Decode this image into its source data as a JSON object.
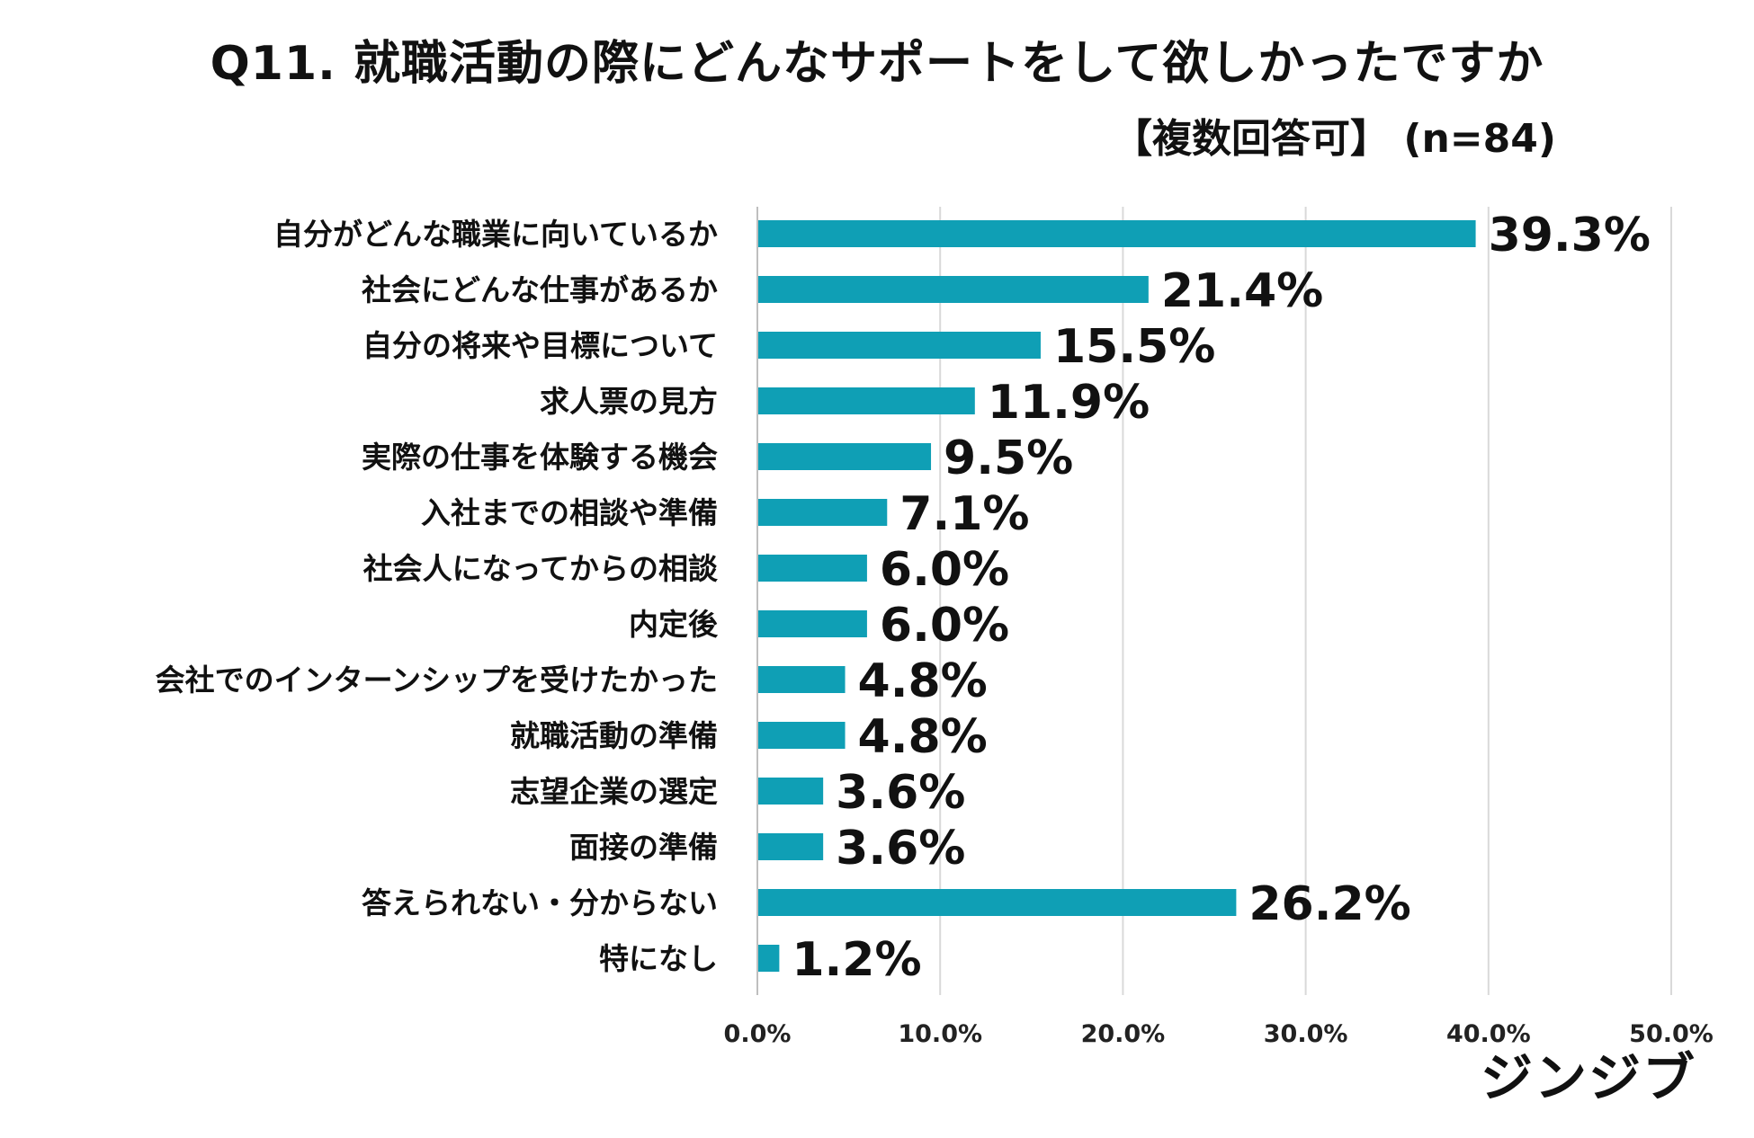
{
  "header": {
    "title": "Q11. 就職活動の際にどんなサポートをして欲しかったですか",
    "subtitle": "【複数回答可】 (n=84)"
  },
  "logo": {
    "text": "ジンジブ"
  },
  "colors": {
    "bar": "#0f9fb5",
    "grid": "#d9d9d9",
    "axis": "#bfbfbf"
  },
  "chart_data": {
    "type": "bar",
    "orientation": "horizontal",
    "title": "Q11. 就職活動の際にどんなサポートをして欲しかったですか",
    "subtitle": "【複数回答可】 (n=84)",
    "xlabel": "",
    "ylabel": "",
    "xlim": [
      0,
      50
    ],
    "grid": true,
    "categories": [
      "自分がどんな職業に向いているか",
      "社会にどんな仕事があるか",
      "自分の将来や目標について",
      "求人票の見方",
      "実際の仕事を体験する機会",
      "入社までの相談や準備",
      "社会人になってからの相談",
      "内定後",
      "会社でのインターンシップを受けたかった",
      "就職活動の準備",
      "志望企業の選定",
      "面接の準備",
      "答えられない・分からない",
      "特になし"
    ],
    "values": [
      39.3,
      21.4,
      15.5,
      11.9,
      9.5,
      7.1,
      6.0,
      6.0,
      4.8,
      4.8,
      3.6,
      3.6,
      26.2,
      1.2
    ],
    "value_labels": [
      "39.3%",
      "21.4%",
      "15.5%",
      "11.9%",
      "9.5%",
      "7.1%",
      "6.0%",
      "6.0%",
      "4.8%",
      "4.8%",
      "3.6%",
      "3.6%",
      "26.2%",
      "1.2%"
    ],
    "ticks": [
      0,
      10,
      20,
      30,
      40,
      50
    ],
    "tick_labels": [
      "0.0%",
      "10.0%",
      "20.0%",
      "30.0%",
      "40.0%",
      "50.0%"
    ]
  }
}
